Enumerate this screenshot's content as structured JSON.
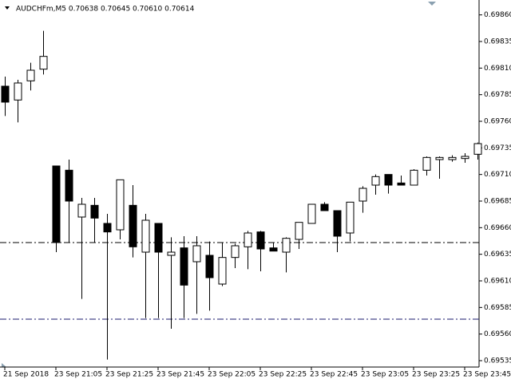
{
  "chart_data": {
    "type": "candlestick",
    "title": "AUDCHFm,M5  0.70638 0.70645 0.70610 0.70614",
    "categories": [
      "21 Sep 2018",
      null,
      null,
      null,
      "23 Sep 21:05",
      null,
      null,
      null,
      "23 Sep 21:25",
      null,
      null,
      null,
      "23 Sep 21:45",
      null,
      null,
      null,
      "23 Sep 22:05",
      null,
      null,
      null,
      "23 Sep 22:25",
      null,
      null,
      null,
      "23 Sep 22:45",
      null,
      null,
      null,
      "23 Sep 23:05",
      null,
      null,
      null,
      "23 Sep 23:25",
      null,
      null,
      null,
      "23 Sep 23:45",
      null
    ],
    "open": [
      0.69793,
      0.6978,
      0.69798,
      0.69809,
      0.69718,
      0.69714,
      0.6967,
      0.69681,
      0.69664,
      0.69658,
      0.69681,
      0.69637,
      0.69664,
      0.69634,
      0.69641,
      0.69628,
      0.69634,
      0.69607,
      0.69632,
      0.69642,
      0.69656,
      0.69641,
      0.69637,
      0.69649,
      0.69664,
      0.69682,
      0.69676,
      0.69655,
      0.69685,
      0.697,
      0.6971,
      0.69702,
      0.697,
      0.69714,
      0.69724,
      0.69724,
      0.69725,
      0.69729
    ],
    "high": [
      0.69802,
      0.69799,
      0.69815,
      0.69845,
      0.69718,
      0.69724,
      0.69688,
      0.69688,
      0.69673,
      0.69705,
      0.697,
      0.69673,
      0.69664,
      0.69651,
      0.69652,
      0.69652,
      0.69647,
      0.69646,
      0.69645,
      0.69657,
      0.69657,
      0.69646,
      0.69651,
      0.69665,
      0.69682,
      0.69684,
      0.69676,
      0.69684,
      0.69699,
      0.6971,
      0.6971,
      0.69709,
      0.69715,
      0.69727,
      0.69727,
      0.69728,
      0.6973,
      0.6974
    ],
    "low": [
      0.69765,
      0.69759,
      0.69789,
      0.69804,
      0.69637,
      0.69646,
      0.69593,
      0.69646,
      0.69536,
      0.69649,
      0.69632,
      0.69575,
      0.69575,
      0.69565,
      0.69575,
      0.69579,
      0.69582,
      0.69605,
      0.69622,
      0.69621,
      0.69619,
      0.69638,
      0.69618,
      0.6964,
      0.69664,
      0.69676,
      0.69637,
      0.69647,
      0.69674,
      0.69691,
      0.69692,
      0.697,
      0.697,
      0.69709,
      0.69706,
      0.69722,
      0.69721,
      0.69724
    ],
    "close": [
      0.69778,
      0.69796,
      0.69808,
      0.69821,
      0.69646,
      0.69685,
      0.69682,
      0.69669,
      0.69656,
      0.69705,
      0.69642,
      0.69667,
      0.69637,
      0.69637,
      0.69606,
      0.69643,
      0.69613,
      0.69632,
      0.69643,
      0.69655,
      0.6964,
      0.69638,
      0.6965,
      0.69665,
      0.69682,
      0.69676,
      0.69652,
      0.69684,
      0.69697,
      0.69708,
      0.697,
      0.697,
      0.69714,
      0.69726,
      0.69726,
      0.69726,
      0.69727,
      0.69739
    ],
    "up_color": "#ffffff",
    "down_color": "#000000",
    "hlines": [
      {
        "value": 0.69646,
        "color": "#000000"
      },
      {
        "value": 0.69574,
        "color": "#1a1a6e"
      }
    ],
    "ylim": [
      0.69529,
      0.69874
    ],
    "yticks": [
      {
        "value": 0.6986,
        "label": "0.69860"
      },
      {
        "value": 0.69835,
        "label": "0.69835"
      },
      {
        "value": 0.6981,
        "label": "0.69810"
      },
      {
        "value": 0.69785,
        "label": "0.69785"
      },
      {
        "value": 0.6976,
        "label": "0.69760"
      },
      {
        "value": 0.69735,
        "label": "0.69735"
      },
      {
        "value": 0.6971,
        "label": "0.69710"
      },
      {
        "value": 0.69685,
        "label": "0.69685"
      },
      {
        "value": 0.6966,
        "label": "0.69660"
      },
      {
        "value": 0.69635,
        "label": "0.69635"
      },
      {
        "value": 0.6961,
        "label": "0.69610"
      },
      {
        "value": 0.69585,
        "label": "0.69585"
      },
      {
        "value": 0.6956,
        "label": "0.69560"
      },
      {
        "value": 0.69535,
        "label": "0.69535"
      }
    ]
  }
}
